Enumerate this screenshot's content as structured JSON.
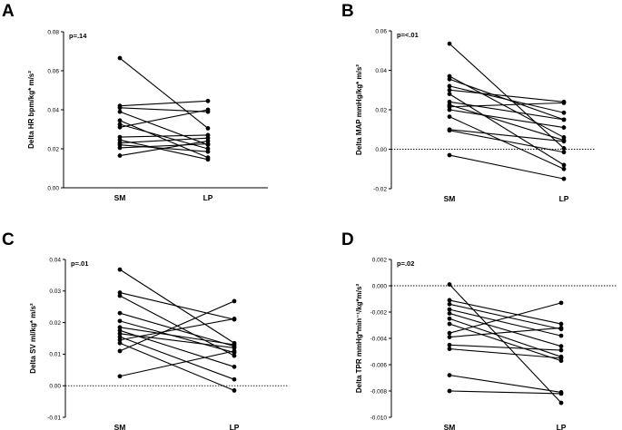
{
  "chart_data": [
    {
      "type": "line",
      "panel": "A",
      "ylabel": "Delta HR bpm/kg* m/s²",
      "annotation": "p=.14",
      "categories": [
        "SM",
        "LP"
      ],
      "ylim": [
        0,
        0.08
      ],
      "yticks": [
        0.0,
        0.02,
        0.04,
        0.06,
        0.08
      ],
      "ytick_labels": [
        "0.00",
        "0.02",
        "0.04",
        "0.06",
        "0.08"
      ],
      "zero_line": false,
      "series": [
        {
          "values": [
            0.0665,
            0.0305
          ]
        },
        {
          "values": [
            0.042,
            0.0445
          ]
        },
        {
          "values": [
            0.041,
            0.039
          ]
        },
        {
          "values": [
            0.039,
            0.022
          ]
        },
        {
          "values": [
            0.0345,
            0.0155
          ]
        },
        {
          "values": [
            0.0325,
            0.02
          ]
        },
        {
          "values": [
            0.031,
            0.04
          ]
        },
        {
          "values": [
            0.026,
            0.027
          ]
        },
        {
          "values": [
            0.0245,
            0.0145
          ]
        },
        {
          "values": [
            0.023,
            0.0255
          ]
        },
        {
          "values": [
            0.022,
            0.0185
          ]
        },
        {
          "values": [
            0.0205,
            0.0225
          ]
        },
        {
          "values": [
            0.0165,
            0.024
          ]
        }
      ]
    },
    {
      "type": "line",
      "panel": "B",
      "ylabel": "Delta MAP mmHg/kg* m/s²",
      "annotation": "p=<.01",
      "categories": [
        "SM",
        "LP"
      ],
      "ylim": [
        -0.02,
        0.06
      ],
      "yticks": [
        -0.02,
        0.0,
        0.02,
        0.04,
        0.06
      ],
      "ytick_labels": [
        "-0.02",
        "0.00",
        "0.02",
        "0.04",
        "0.06"
      ],
      "zero_line": true,
      "series": [
        {
          "values": [
            0.0535,
            0.0005
          ]
        },
        {
          "values": [
            0.037,
            0.006
          ]
        },
        {
          "values": [
            0.0355,
            0.015
          ]
        },
        {
          "values": [
            0.032,
            0.0185
          ]
        },
        {
          "values": [
            0.03,
            0.024
          ]
        },
        {
          "values": [
            0.028,
            -0.008
          ]
        },
        {
          "values": [
            0.024,
            0.015
          ]
        },
        {
          "values": [
            0.0225,
            0.0045
          ]
        },
        {
          "values": [
            0.0215,
            0.0235
          ]
        },
        {
          "values": [
            0.02,
            0.011
          ]
        },
        {
          "values": [
            0.0165,
            -0.01
          ]
        },
        {
          "values": [
            0.01,
            0.004
          ]
        },
        {
          "values": [
            0.0095,
            -0.0015
          ]
        },
        {
          "values": [
            -0.003,
            -0.015
          ]
        }
      ]
    },
    {
      "type": "line",
      "panel": "C",
      "ylabel": "Delta SV ml/kg* m/s²",
      "annotation": "p=.01",
      "categories": [
        "SM",
        "LP"
      ],
      "ylim": [
        -0.01,
        0.04
      ],
      "yticks": [
        -0.01,
        0.0,
        0.01,
        0.02,
        0.03,
        0.04
      ],
      "ytick_labels": [
        "-0.01",
        "0.00",
        "0.01",
        "0.02",
        "0.03",
        "0.04"
      ],
      "zero_line": true,
      "series": [
        {
          "values": [
            0.0368,
            0.0135
          ]
        },
        {
          "values": [
            0.0295,
            0.021
          ]
        },
        {
          "values": [
            0.0285,
            0.0095
          ]
        },
        {
          "values": [
            0.023,
            0.0125
          ]
        },
        {
          "values": [
            0.0205,
            0.0105
          ]
        },
        {
          "values": [
            0.0185,
            0.013
          ]
        },
        {
          "values": [
            0.0175,
            0.006
          ]
        },
        {
          "values": [
            0.0165,
            0.012
          ]
        },
        {
          "values": [
            0.0155,
            0.002
          ]
        },
        {
          "values": [
            0.0145,
            0.0212
          ]
        },
        {
          "values": [
            0.0135,
            -0.0015
          ]
        },
        {
          "values": [
            0.011,
            0.0268
          ]
        },
        {
          "values": [
            0.003,
            0.011
          ]
        }
      ]
    },
    {
      "type": "line",
      "panel": "D",
      "ylabel": "Delta TPR mmHg*min⁻¹/kg*m/s²",
      "annotation": "p=.02",
      "categories": [
        "SM",
        "LP"
      ],
      "ylim": [
        -0.01,
        0.002
      ],
      "yticks": [
        -0.01,
        -0.008,
        -0.006,
        -0.004,
        -0.002,
        0.0,
        0.002
      ],
      "ytick_labels": [
        "-0.010",
        "-0.008",
        "-0.006",
        "-0.004",
        "-0.002",
        "0.000",
        "0.002"
      ],
      "zero_line": true,
      "series": [
        {
          "values": [
            0.0001,
            -0.0089
          ]
        },
        {
          "values": [
            -0.0011,
            -0.0029
          ]
        },
        {
          "values": [
            -0.0014,
            -0.0033
          ]
        },
        {
          "values": [
            -0.0018,
            -0.0038
          ]
        },
        {
          "values": [
            -0.0021,
            -0.0046
          ]
        },
        {
          "values": [
            -0.0025,
            -0.0054
          ]
        },
        {
          "values": [
            -0.0029,
            -0.0057
          ]
        },
        {
          "values": [
            -0.0036,
            -0.0013
          ]
        },
        {
          "values": [
            -0.0039,
            -0.0032
          ]
        },
        {
          "values": [
            -0.0045,
            -0.0049
          ]
        },
        {
          "values": [
            -0.0048,
            -0.0055
          ]
        },
        {
          "values": [
            -0.0068,
            -0.0081
          ]
        },
        {
          "values": [
            -0.008,
            -0.0082
          ]
        }
      ]
    }
  ]
}
